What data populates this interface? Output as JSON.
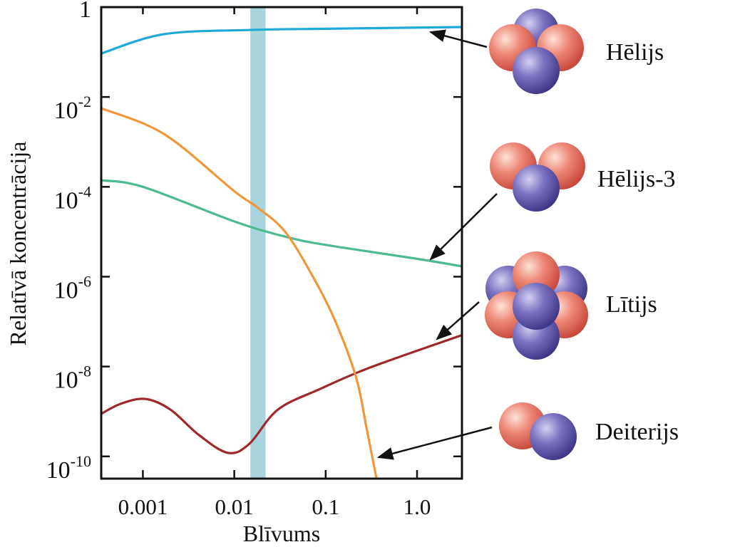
{
  "chart_data": {
    "type": "line",
    "xlabel": "Blīvums",
    "ylabel": "Relatīvā koncentrācija",
    "xscale": "log",
    "yscale": "log",
    "xlim": [
      0.00035,
      3.1
    ],
    "ylim": [
      3.2e-11,
      1
    ],
    "xticks": [
      0.001,
      0.01,
      0.1,
      {
        "value": 1,
        "label": "1.0"
      }
    ],
    "yticks": [
      1,
      {
        "value": 0.01,
        "label": "10-2"
      },
      {
        "value": 0.0001,
        "label": "10-4"
      },
      {
        "value": 1e-06,
        "label": "10-6"
      },
      {
        "value": 1e-08,
        "label": "10-8"
      },
      {
        "value": 1e-10,
        "label": "10-10"
      }
    ],
    "band": {
      "x": [
        0.015,
        0.022
      ],
      "color": "#a8d4de"
    },
    "series": [
      {
        "name": "Hēlijs",
        "color": "#1eaad8",
        "x": [
          0.00035,
          0.0017,
          0.015,
          0.1,
          3.1
        ],
        "values": [
          0.093,
          0.25,
          0.31,
          0.33,
          0.36
        ]
      },
      {
        "name": "Hēlijs-3",
        "color": "#4dba8f",
        "x": [
          0.00035,
          0.001,
          0.01,
          0.036,
          0.1,
          1,
          3.1
        ],
        "values": [
          0.00014,
          0.0001,
          1.7e-05,
          7.8e-06,
          5.1e-06,
          2.5e-06,
          1.7e-06
        ]
      },
      {
        "name": "Lītijs",
        "color": "#a0272a",
        "x": [
          0.00035,
          0.00058,
          0.00107,
          0.002,
          0.0041,
          0.0085,
          0.0146,
          0.03,
          0.088,
          0.31,
          3.1
        ],
        "values": [
          8.9e-10,
          1.5e-09,
          1.9e-09,
          1.1e-09,
          3e-10,
          1.2e-10,
          1.9e-10,
          1.1e-09,
          3.2e-09,
          9.6e-09,
          5e-08
        ]
      },
      {
        "name": "Deiterijs",
        "color": "#f0973a",
        "x": [
          0.00035,
          0.0017,
          0.01,
          0.0175,
          0.036,
          0.074,
          0.128,
          0.216,
          0.28,
          0.36
        ],
        "values": [
          0.0056,
          0.0015,
          8e-05,
          3.6e-05,
          1e-05,
          9.3e-07,
          1e-07,
          5.6e-09,
          4.3e-10,
          3.2e-11
        ]
      }
    ]
  }
}
